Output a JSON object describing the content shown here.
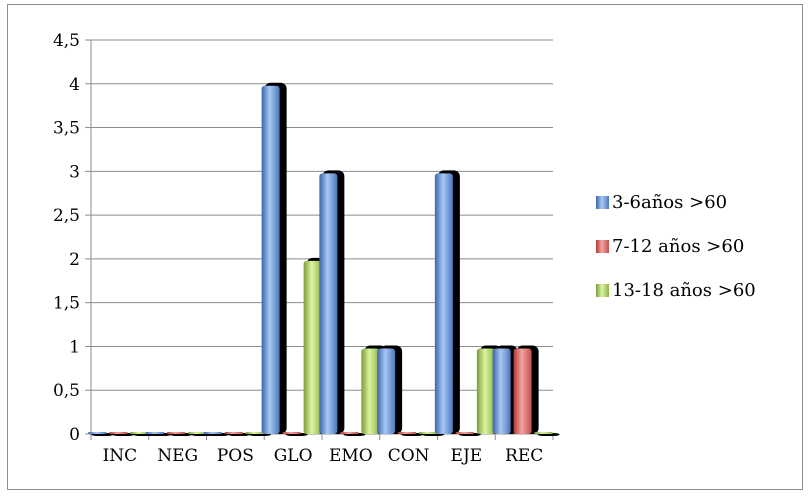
{
  "chart_data": {
    "type": "bar",
    "categories": [
      "INC",
      "NEG",
      "POS",
      "GLO",
      "EMO",
      "CON",
      "EJE",
      "REC"
    ],
    "series": [
      {
        "name": "3-6años >60",
        "color": "#4f81bd",
        "values": [
          0,
          0,
          0,
          4,
          3,
          1,
          3,
          1
        ]
      },
      {
        "name": "7-12 años >60",
        "color": "#c0504d",
        "values": [
          0,
          0,
          0,
          0,
          0,
          0,
          0,
          1
        ]
      },
      {
        "name": "13-18 años >60",
        "color": "#9bbb59",
        "values": [
          0,
          0,
          0,
          2,
          1,
          0,
          1,
          0
        ]
      }
    ],
    "y_ticks": [
      "0",
      "0,5",
      "1",
      "1,5",
      "2",
      "2,5",
      "3",
      "3,5",
      "4",
      "4,5"
    ],
    "ylim": [
      0,
      4.5
    ],
    "grid": true,
    "legend_position": "right",
    "title": "",
    "xlabel": "",
    "ylabel": ""
  }
}
